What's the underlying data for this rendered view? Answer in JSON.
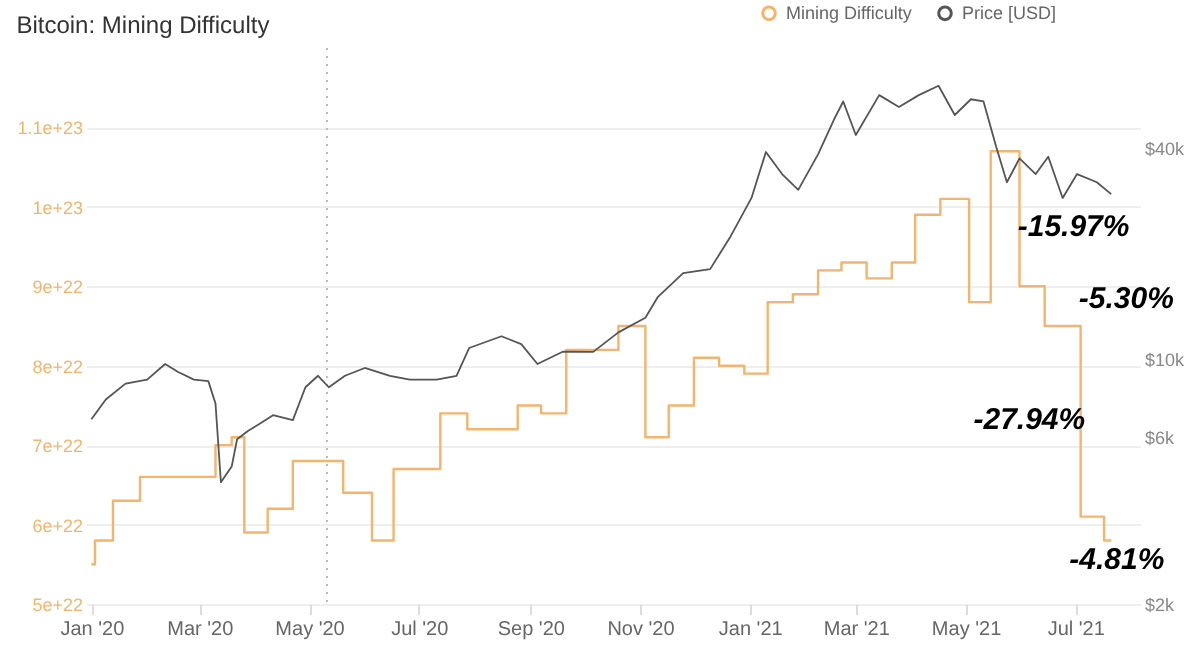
{
  "chart_data": {
    "type": "line",
    "title": "Bitcoin: Mining Difficulty",
    "xlim": [
      "2019-12-29",
      "2021-08-06"
    ],
    "xticks": [
      {
        "value": "2020-01-01",
        "label": "Jan '20"
      },
      {
        "value": "2020-03-01",
        "label": "Mar '20"
      },
      {
        "value": "2020-05-01",
        "label": "May '20"
      },
      {
        "value": "2020-07-01",
        "label": "Jul '20"
      },
      {
        "value": "2020-09-01",
        "label": "Sep '20"
      },
      {
        "value": "2020-11-01",
        "label": "Nov '20"
      },
      {
        "value": "2021-01-01",
        "label": "Jan '21"
      },
      {
        "value": "2021-03-01",
        "label": "Mar '21"
      },
      {
        "value": "2021-05-01",
        "label": "May '21"
      },
      {
        "value": "2021-07-01",
        "label": "Jul '21"
      }
    ],
    "ylim": [
      5e+22,
      1.2e+23
    ],
    "yticks": [
      {
        "value": 5e+22,
        "label": "5e+22"
      },
      {
        "value": 6e+22,
        "label": "6e+22"
      },
      {
        "value": 7e+22,
        "label": "7e+22"
      },
      {
        "value": 8e+22,
        "label": "8e+22"
      },
      {
        "value": 9e+22,
        "label": "9e+22"
      },
      {
        "value": 1e+23,
        "label": "1e+23"
      },
      {
        "value": 1.1e+23,
        "label": "1.1e+23"
      }
    ],
    "y2lim": [
      2000,
      77000
    ],
    "y2ticks": [
      {
        "value": 2000,
        "label": "$2k"
      },
      {
        "value": 6000,
        "label": "$6k"
      },
      {
        "value": 10000,
        "label": "$10k"
      },
      {
        "value": 40000,
        "label": "$40k"
      }
    ],
    "log": "y2",
    "grid": "y",
    "legend": "top right",
    "series": [
      {
        "name": "Mining Difficulty",
        "type": "step",
        "color": "#f5b46c",
        "x": [
          "2020-01-01",
          "2020-01-03",
          "2020-01-13",
          "2020-01-28",
          "2020-02-11",
          "2020-02-26",
          "2020-03-10",
          "2020-03-19",
          "2020-03-26",
          "2020-04-08",
          "2020-04-22",
          "2020-05-06",
          "2020-05-20",
          "2020-06-05",
          "2020-06-17",
          "2020-07-13",
          "2020-07-28",
          "2020-08-11",
          "2020-08-25",
          "2020-09-07",
          "2020-09-21",
          "2020-10-20",
          "2020-11-04",
          "2020-11-17",
          "2020-12-01",
          "2020-12-15",
          "2020-12-29",
          "2021-01-11",
          "2021-01-25",
          "2021-02-08",
          "2021-02-21",
          "2021-03-07",
          "2021-03-21",
          "2021-04-03",
          "2021-04-17",
          "2021-05-03",
          "2021-05-15",
          "2021-05-31",
          "2021-06-14",
          "2021-07-04",
          "2021-07-17",
          "2021-07-21"
        ],
        "values": [
          5.5e+22,
          5.8e+22,
          6.3e+22,
          6.6e+22,
          6.6e+22,
          6.6e+22,
          7e+22,
          7.1e+22,
          5.9e+22,
          6.2e+22,
          6.8e+22,
          6.8e+22,
          6.4e+22,
          5.8e+22,
          6.7e+22,
          7.4e+22,
          7.2e+22,
          7.2e+22,
          7.5e+22,
          7.4e+22,
          8.2e+22,
          8.5e+22,
          7.1e+22,
          7.5e+22,
          8.1e+22,
          8e+22,
          7.9e+22,
          8.8e+22,
          8.9e+22,
          9.2e+22,
          9.3e+22,
          9.1e+22,
          9.3e+22,
          9.9e+22,
          1.01e+23,
          8.8e+22,
          1.07e+23,
          9e+22,
          8.5e+22,
          6.1e+22,
          5.8e+22,
          5.8e+22
        ]
      },
      {
        "name": "Price [USD]",
        "axis": "y2",
        "color": "#555555",
        "x": [
          "2020-01-01",
          "2020-01-09",
          "2020-01-20",
          "2020-02-01",
          "2020-02-11",
          "2020-02-18",
          "2020-02-27",
          "2020-03-06",
          "2020-03-10",
          "2020-03-13",
          "2020-03-19",
          "2020-03-22",
          "2020-03-28",
          "2020-04-04",
          "2020-04-11",
          "2020-04-22",
          "2020-04-29",
          "2020-05-06",
          "2020-05-12",
          "2020-05-21",
          "2020-06-01",
          "2020-06-15",
          "2020-06-26",
          "2020-07-11",
          "2020-07-22",
          "2020-07-29",
          "2020-08-16",
          "2020-08-27",
          "2020-09-05",
          "2020-09-19",
          "2020-10-06",
          "2020-10-20",
          "2020-11-04",
          "2020-11-11",
          "2020-11-25",
          "2020-12-10",
          "2020-12-21",
          "2021-01-02",
          "2021-01-10",
          "2021-01-19",
          "2021-01-28",
          "2021-02-08",
          "2021-02-17",
          "2021-02-22",
          "2021-03-01",
          "2021-03-14",
          "2021-03-25",
          "2021-04-05",
          "2021-04-16",
          "2021-04-25",
          "2021-05-04",
          "2021-05-11",
          "2021-05-18",
          "2021-05-24",
          "2021-05-31",
          "2021-06-09",
          "2021-06-16",
          "2021-06-24",
          "2021-07-02",
          "2021-07-13",
          "2021-07-21"
        ],
        "values": [
          6730,
          7660,
          8500,
          8730,
          9670,
          9190,
          8730,
          8640,
          7460,
          4450,
          4930,
          5900,
          6230,
          6550,
          6910,
          6690,
          8300,
          8950,
          8300,
          8950,
          9420,
          8950,
          8730,
          8730,
          8950,
          10740,
          11600,
          11020,
          9670,
          10480,
          10470,
          11900,
          13100,
          15030,
          17560,
          18030,
          22180,
          28770,
          38900,
          33650,
          30340,
          38300,
          48300,
          54200,
          43500,
          56500,
          52300,
          56500,
          60100,
          49600,
          55000,
          54200,
          40300,
          31900,
          37300,
          33650,
          37700,
          28770,
          33650,
          31900,
          29500
        ]
      }
    ],
    "ref_lines": [
      {
        "axis": "x",
        "value": "2020-05-11",
        "color": "#bbbbbb",
        "line_style": "dotted"
      }
    ],
    "annotations": [
      "-15.97%",
      "-5.30%",
      "-27.94%",
      "-4.81%"
    ]
  }
}
